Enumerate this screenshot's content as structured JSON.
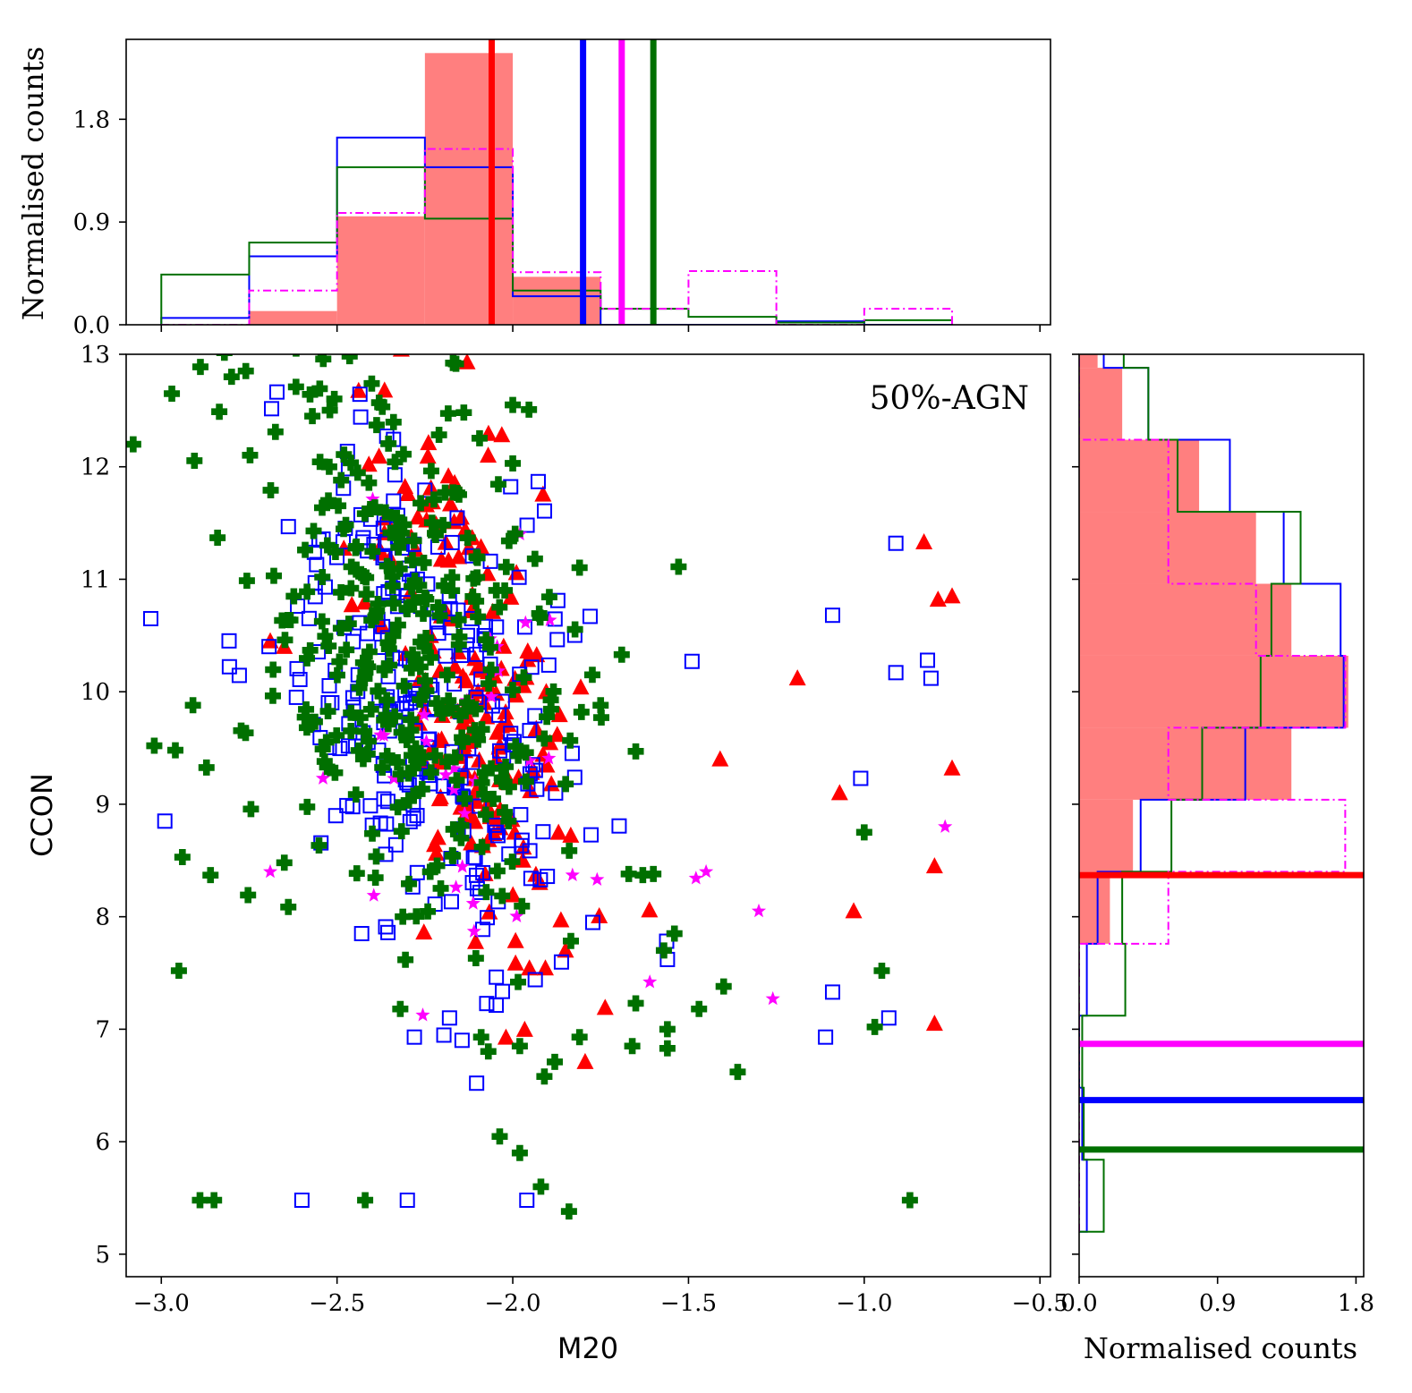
{
  "chart_data": {
    "type": "scatter",
    "annotation": "50%-AGN",
    "colors": {
      "red": "#ff0000",
      "blue": "#0000ff",
      "magenta": "#ff00ff",
      "green": "#007000",
      "fill": "#ff7f7f"
    },
    "main": {
      "xlabel": "M20",
      "ylabel": "CCON",
      "xlim": [
        -3.1,
        -0.47
      ],
      "ylim": [
        4.8,
        13.0
      ],
      "xticks": [
        -3.0,
        -2.5,
        -2.0,
        -1.5,
        -1.0,
        -0.5
      ],
      "xtick_labels": [
        "−3.0",
        "−2.5",
        "−2.0",
        "−1.5",
        "−1.0",
        "−0.5"
      ],
      "yticks": [
        5,
        6,
        7,
        8,
        9,
        10,
        11,
        12,
        13
      ],
      "ytick_labels": [
        "5",
        "6",
        "7",
        "8",
        "9",
        "10",
        "11",
        "12",
        "13"
      ],
      "series": [
        {
          "name": "red triangles",
          "marker": "triangle",
          "color": "red",
          "cx": -2.12,
          "cy": 10.1,
          "sx": 0.12,
          "sy": 1.2,
          "n": 180,
          "extra": [
            [
              -0.83,
              11.33
            ],
            [
              -0.79,
              10.82
            ],
            [
              -0.75,
              10.85
            ],
            [
              -1.19,
              10.12
            ],
            [
              -1.41,
              9.4
            ],
            [
              -1.07,
              9.1
            ],
            [
              -0.75,
              9.32
            ],
            [
              -0.8,
              8.45
            ],
            [
              -1.03,
              8.05
            ],
            [
              -0.8,
              7.05
            ],
            [
              -2.07,
              12.1
            ],
            [
              -2.13,
              12.93
            ],
            [
              -2.69,
              10.45
            ],
            [
              -2.65,
              10.4
            ],
            [
              -1.85,
              7.7
            ]
          ]
        },
        {
          "name": "blue squares",
          "marker": "square",
          "color": "blue",
          "cx": -2.25,
          "cy": 9.9,
          "sx": 0.2,
          "sy": 1.25,
          "n": 260,
          "extra": [
            [
              -3.03,
              10.65
            ],
            [
              -2.99,
              8.85
            ],
            [
              -0.91,
              11.32
            ],
            [
              -1.09,
              10.68
            ],
            [
              -1.49,
              10.27
            ],
            [
              -0.91,
              10.17
            ],
            [
              -0.82,
              10.28
            ],
            [
              -0.81,
              10.12
            ],
            [
              -1.01,
              9.23
            ],
            [
              -1.09,
              7.33
            ],
            [
              -0.93,
              7.1
            ],
            [
              -1.11,
              6.93
            ],
            [
              -2.28,
              6.93
            ],
            [
              -2.18,
              7.1
            ],
            [
              -2.6,
              5.48
            ],
            [
              -2.3,
              5.48
            ],
            [
              -1.96,
              5.48
            ],
            [
              -1.56,
              7.62
            ],
            [
              -1.78,
              10.67
            ]
          ]
        },
        {
          "name": "magenta stars",
          "marker": "star",
          "color": "magenta",
          "cx": -2.15,
          "cy": 9.8,
          "sx": 0.15,
          "sy": 1.0,
          "n": 28,
          "extra": [
            [
              -1.98,
              11.4
            ],
            [
              -1.45,
              8.4
            ],
            [
              -1.3,
              8.05
            ],
            [
              -1.26,
              7.27
            ],
            [
              -1.61,
              7.42
            ],
            [
              -0.77,
              8.8
            ],
            [
              -2.69,
              8.4
            ],
            [
              -2.54,
              9.23
            ],
            [
              -1.83,
              8.37
            ],
            [
              -1.76,
              8.33
            ],
            [
              -2.11,
              7.87
            ]
          ]
        },
        {
          "name": "green crosses",
          "marker": "plus",
          "color": "green",
          "cx": -2.3,
          "cy": 10.3,
          "sx": 0.22,
          "sy": 1.3,
          "n": 320,
          "extra": [
            [
              -3.08,
              12.2
            ],
            [
              -2.97,
              12.65
            ],
            [
              -2.8,
              12.8
            ],
            [
              -2.0,
              12.55
            ],
            [
              -2.0,
              12.03
            ],
            [
              -2.89,
              5.48
            ],
            [
              -2.85,
              5.48
            ],
            [
              -2.42,
              5.48
            ],
            [
              -1.84,
              5.38
            ],
            [
              -1.92,
              5.6
            ],
            [
              -1.98,
              5.9
            ],
            [
              -0.87,
              5.48
            ],
            [
              -2.95,
              7.52
            ],
            [
              -1.36,
              6.62
            ],
            [
              -1.91,
              6.58
            ],
            [
              -1.98,
              6.85
            ],
            [
              -1.81,
              6.93
            ],
            [
              -1.66,
              6.85
            ],
            [
              -1.56,
              6.83
            ],
            [
              -1.56,
              7.0
            ],
            [
              -1.47,
              7.18
            ],
            [
              -1.4,
              7.38
            ],
            [
              -1.65,
              7.23
            ],
            [
              -0.97,
              7.02
            ],
            [
              -0.95,
              7.52
            ],
            [
              -1.0,
              8.75
            ],
            [
              -1.54,
              7.85
            ],
            [
              -1.57,
              7.7
            ],
            [
              -1.63,
              8.37
            ],
            [
              -1.6,
              8.38
            ],
            [
              -1.67,
              8.38
            ],
            [
              -1.65,
              9.47
            ],
            [
              -1.69,
              10.33
            ],
            [
              -1.75,
              9.88
            ],
            [
              -2.94,
              8.53
            ],
            [
              -2.86,
              8.37
            ],
            [
              -2.65,
              8.48
            ],
            [
              -2.91,
              9.88
            ],
            [
              -3.02,
              9.52
            ],
            [
              -2.96,
              9.48
            ],
            [
              -2.32,
              7.18
            ],
            [
              -2.09,
              6.93
            ]
          ]
        }
      ]
    },
    "top_hist": {
      "ylabel": "Normalised counts",
      "ylim": [
        0,
        2.5
      ],
      "yticks": [
        0.0,
        0.9,
        1.8
      ],
      "ytick_labels": [
        "0.0",
        "0.9",
        "1.8"
      ],
      "bins": [
        -3.0,
        -2.75,
        -2.5,
        -2.25,
        -2.0,
        -1.75,
        -1.5,
        -1.25,
        -1.0,
        -0.75
      ],
      "series": [
        {
          "name": "red",
          "style": "filled",
          "color": "fill",
          "counts": [
            0.0,
            0.12,
            0.95,
            2.38,
            0.42,
            0.0,
            0.0,
            0.0,
            0.0
          ]
        },
        {
          "name": "blue",
          "style": "step",
          "color": "blue",
          "counts": [
            0.06,
            0.6,
            1.64,
            1.38,
            0.25,
            0.0,
            0.0,
            0.03,
            0.0
          ]
        },
        {
          "name": "green",
          "style": "step",
          "color": "green",
          "counts": [
            0.44,
            0.72,
            1.38,
            0.93,
            0.3,
            0.14,
            0.07,
            0.02,
            0.04
          ]
        },
        {
          "name": "magenta",
          "style": "dashdot",
          "color": "magenta",
          "counts": [
            0.0,
            0.3,
            0.98,
            1.54,
            0.46,
            0.14,
            0.47,
            0.0,
            0.14
          ]
        }
      ],
      "medians": [
        {
          "color": "red",
          "value": -2.06
        },
        {
          "color": "blue",
          "value": -1.8
        },
        {
          "color": "magenta",
          "value": -1.69
        },
        {
          "color": "green",
          "value": -1.6
        }
      ]
    },
    "right_hist": {
      "xlabel": "Normalised counts",
      "xlim": [
        0,
        1.85
      ],
      "xticks": [
        0.0,
        0.9,
        1.8
      ],
      "xtick_labels": [
        "0.0",
        "0.9",
        "1.8"
      ],
      "bins": [
        5.2,
        5.84,
        6.48,
        7.12,
        7.76,
        8.4,
        9.04,
        9.68,
        10.32,
        10.96,
        11.6,
        12.24,
        12.88,
        13.52
      ],
      "series": [
        {
          "name": "red",
          "style": "filled",
          "color": "fill",
          "counts": [
            0.0,
            0.0,
            0.0,
            0.0,
            0.2,
            0.35,
            1.38,
            1.75,
            1.38,
            1.15,
            0.78,
            0.28,
            0.12
          ]
        },
        {
          "name": "blue",
          "style": "step",
          "color": "blue",
          "counts": [
            0.05,
            0.02,
            0.0,
            0.05,
            0.12,
            0.4,
            1.08,
            1.72,
            1.7,
            1.33,
            0.98,
            0.45,
            0.16
          ]
        },
        {
          "name": "green",
          "style": "step",
          "color": "green",
          "counts": [
            0.16,
            0.03,
            0.02,
            0.3,
            0.28,
            0.6,
            0.8,
            1.18,
            1.25,
            1.44,
            0.64,
            0.45,
            0.29
          ]
        },
        {
          "name": "magenta",
          "style": "dashdot",
          "color": "magenta",
          "counts": [
            0.0,
            0.0,
            0.0,
            0.0,
            0.58,
            1.73,
            0.58,
            1.73,
            1.15,
            0.58,
            0.58,
            0.0,
            0.0
          ]
        }
      ],
      "medians": [
        {
          "color": "red",
          "value": 8.37
        },
        {
          "color": "magenta",
          "value": 6.87
        },
        {
          "color": "blue",
          "value": 6.37
        },
        {
          "color": "green",
          "value": 5.93
        }
      ]
    }
  }
}
